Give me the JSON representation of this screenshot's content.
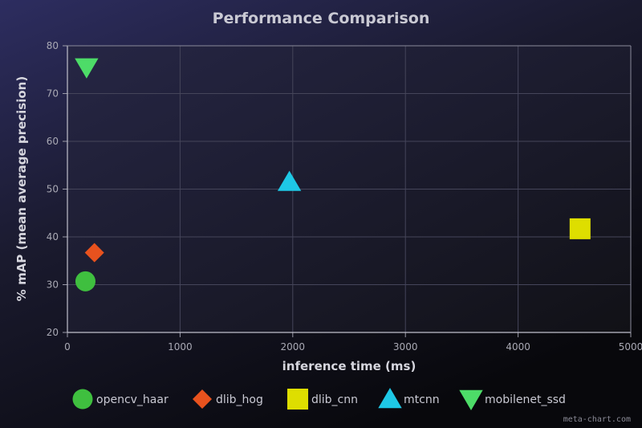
{
  "chart_data": {
    "type": "scatter",
    "title": "Performance Comparison",
    "xlabel": "inference time (ms)",
    "ylabel": "% mAP (mean average precision)",
    "xlim": [
      0,
      5000
    ],
    "ylim": [
      20,
      80
    ],
    "x_ticks": [
      0,
      1000,
      2000,
      3000,
      4000,
      5000
    ],
    "y_ticks": [
      20,
      30,
      40,
      50,
      60,
      70,
      80
    ],
    "grid": true,
    "legend_position": "bottom",
    "series": [
      {
        "name": "opencv_haar",
        "marker": "circle",
        "color": "#3fbf3f",
        "x": 160,
        "y": 30.7
      },
      {
        "name": "dlib_hog",
        "marker": "diamond",
        "color": "#e8521e",
        "x": 240,
        "y": 36.7
      },
      {
        "name": "dlib_cnn",
        "marker": "square",
        "color": "#dede00",
        "x": 4550,
        "y": 41.7
      },
      {
        "name": "mtcnn",
        "marker": "triangle-up",
        "color": "#1ec8e6",
        "x": 1970,
        "y": 51.5
      },
      {
        "name": "mobilenet_ssd",
        "marker": "triangle-down",
        "color": "#4ddc68",
        "x": 170,
        "y": 75.5
      }
    ]
  },
  "watermark": "meta-chart.com"
}
